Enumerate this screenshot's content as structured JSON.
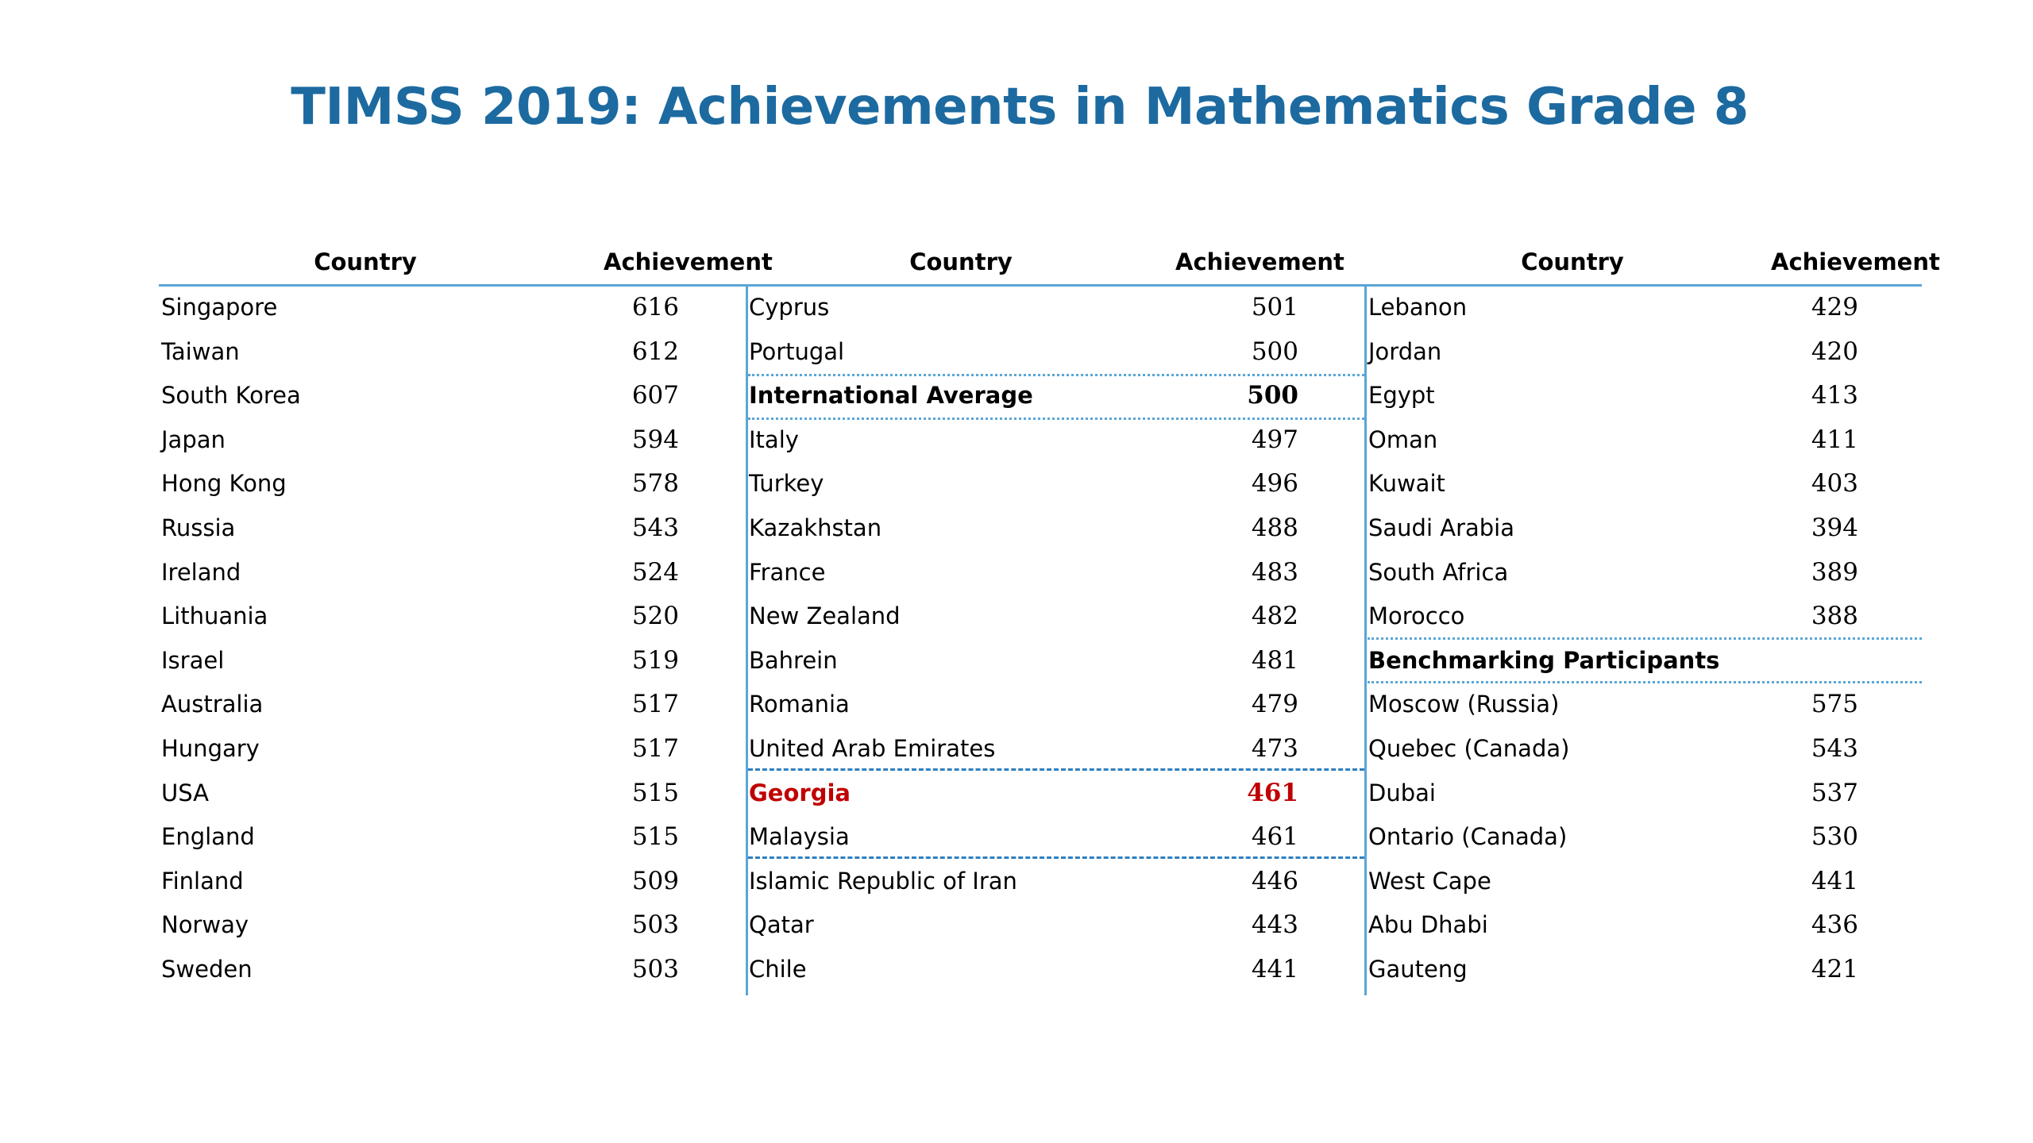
{
  "title": "TIMSS 2019: Achievements in Mathematics Grade 8",
  "headers": {
    "country": "Country",
    "achievement": "Achievement"
  },
  "colors": {
    "title": "#1c6aa0",
    "rule": "#5aa6d6",
    "highlight": "#c00000"
  },
  "columns": [
    {
      "rows": [
        {
          "country": "Singapore",
          "score": "616"
        },
        {
          "country": "Taiwan",
          "score": "612"
        },
        {
          "country": "South Korea",
          "score": "607"
        },
        {
          "country": "Japan",
          "score": "594"
        },
        {
          "country": "Hong Kong",
          "score": "578"
        },
        {
          "country": "Russia",
          "score": "543"
        },
        {
          "country": "Ireland",
          "score": "524"
        },
        {
          "country": "Lithuania",
          "score": "520"
        },
        {
          "country": "Israel",
          "score": "519"
        },
        {
          "country": "Australia",
          "score": "517"
        },
        {
          "country": "Hungary",
          "score": "517"
        },
        {
          "country": "USA",
          "score": "515"
        },
        {
          "country": "England",
          "score": "515"
        },
        {
          "country": "Finland",
          "score": "509"
        },
        {
          "country": "Norway",
          "score": "503"
        },
        {
          "country": "Sweden",
          "score": "503"
        }
      ]
    },
    {
      "rows": [
        {
          "country": "Cyprus",
          "score": "501"
        },
        {
          "country": "Portugal",
          "score": "500"
        },
        {
          "country": "International Average",
          "score": "500",
          "style": "bold"
        },
        {
          "country": "Italy",
          "score": "497"
        },
        {
          "country": "Turkey",
          "score": "496"
        },
        {
          "country": "Kazakhstan",
          "score": "488"
        },
        {
          "country": "France",
          "score": "483"
        },
        {
          "country": "New Zealand",
          "score": "482"
        },
        {
          "country": "Bahrein",
          "score": "481"
        },
        {
          "country": "Romania",
          "score": "479"
        },
        {
          "country": "United Arab Emirates",
          "score": "473"
        },
        {
          "country": "Georgia",
          "score": "461",
          "style": "highlight"
        },
        {
          "country": "Malaysia",
          "score": "461"
        },
        {
          "country": "Islamic Republic of Iran",
          "score": "446"
        },
        {
          "country": "Qatar",
          "score": "443"
        },
        {
          "country": "Chile",
          "score": "441"
        }
      ]
    },
    {
      "rows": [
        {
          "country": "Lebanon",
          "score": "429"
        },
        {
          "country": "Jordan",
          "score": "420"
        },
        {
          "country": "Egypt",
          "score": "413"
        },
        {
          "country": "Oman",
          "score": "411"
        },
        {
          "country": "Kuwait",
          "score": "403"
        },
        {
          "country": "Saudi Arabia",
          "score": "394"
        },
        {
          "country": "South Africa",
          "score": "389"
        },
        {
          "country": "Morocco",
          "score": "388"
        },
        {
          "country": "Benchmarking Participants",
          "score": "",
          "style": "bold"
        },
        {
          "country": "Moscow (Russia)",
          "score": "575"
        },
        {
          "country": "Quebec (Canada)",
          "score": "543"
        },
        {
          "country": "Dubai",
          "score": "537"
        },
        {
          "country": "Ontario (Canada)",
          "score": "530"
        },
        {
          "country": "West Cape",
          "score": "441"
        },
        {
          "country": "Abu Dhabi",
          "score": "436"
        },
        {
          "country": "Gauteng",
          "score": "421"
        }
      ]
    }
  ]
}
